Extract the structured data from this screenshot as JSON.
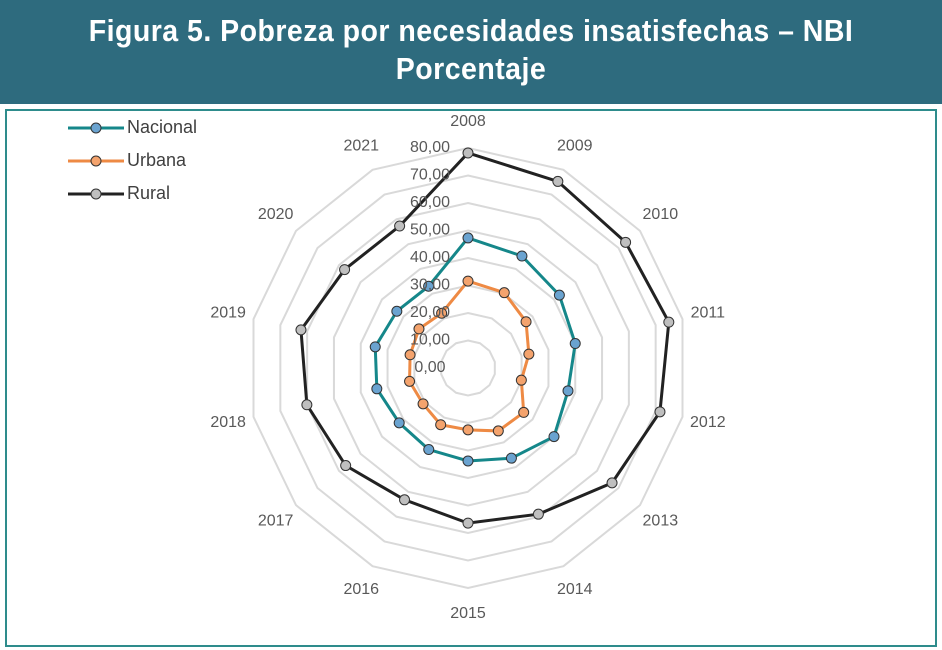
{
  "chart_data": {
    "type": "radar",
    "title": [
      "Figura 5. Pobreza por necesidades insatisfechas – NBI",
      "Porcentaje"
    ],
    "categories": [
      "2008",
      "2009",
      "2010",
      "2011",
      "2012",
      "2013",
      "2014",
      "2015",
      "2016",
      "2017",
      "2018",
      "2019",
      "2020",
      "2021"
    ],
    "series": [
      {
        "name": "Nacional",
        "color": "#15878a",
        "marker": "#6aa3d0",
        "values": [
          47.3,
          45.2,
          42.5,
          40.0,
          37.3,
          40.0,
          36.4,
          33.8,
          32.9,
          32.0,
          34.0,
          34.6,
          33.1,
          33.0
        ]
      },
      {
        "name": "Urbana",
        "color": "#ee8a44",
        "marker": "#f4a36d",
        "values": [
          31.6,
          30.4,
          27.0,
          22.7,
          19.9,
          25.9,
          25.4,
          22.5,
          22.9,
          20.9,
          21.8,
          21.6,
          22.8,
          22.1
        ]
      },
      {
        "name": "Rural",
        "color": "#222222",
        "marker": "#bfbfbf",
        "values": [
          78.2,
          75.3,
          73.3,
          74.9,
          71.6,
          67.0,
          59.0,
          56.4,
          53.2,
          56.9,
          60.1,
          62.3,
          57.4,
          57.3
        ]
      }
    ],
    "ylim": [
      0,
      80
    ],
    "yticks": [
      {
        "value": 0,
        "label": "0,00"
      },
      {
        "value": 10,
        "label": "10,00"
      },
      {
        "value": 20,
        "label": "20,00"
      },
      {
        "value": 30,
        "label": "30,00"
      },
      {
        "value": 40,
        "label": "40,00"
      },
      {
        "value": 50,
        "label": "50,00"
      },
      {
        "value": 60,
        "label": "60,00"
      },
      {
        "value": 70,
        "label": "70,00"
      },
      {
        "value": 80,
        "label": "80,00"
      }
    ],
    "grid": true,
    "legend": "top-left"
  }
}
